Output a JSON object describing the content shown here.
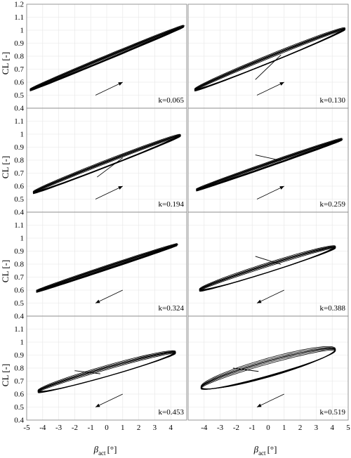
{
  "chart_data": {
    "type": "line",
    "layout": "4x2 grid of subplots",
    "grid": true,
    "xlabel": "β",
    "xlabel_sub": "act",
    "xlabel_unit": "[°]",
    "ylabel": "CL [-]",
    "ylim": [
      0.4,
      1.2
    ],
    "yticks": [
      "0.4",
      "0.5",
      "0.6",
      "0.7",
      "0.8",
      "0.9",
      "1",
      "1.1",
      "1.2"
    ],
    "left_xticks": [
      "-5",
      "-4",
      "-3",
      "-2",
      "-1",
      "0",
      "1",
      "2",
      "3",
      "4"
    ],
    "right_xticks": [
      "-4",
      "-3",
      "-2",
      "-1",
      "0",
      "1",
      "2",
      "3",
      "4",
      "5"
    ],
    "left_xlim": [
      -5,
      5
    ],
    "right_xlim": [
      -5,
      5
    ],
    "line_color": "#000000",
    "grid_color": "#e6e6e6",
    "panels": [
      {
        "k": "k=0.065",
        "arrow": "increasing",
        "x_range": [
          -4.8,
          4.8
        ],
        "cl_at_xmin": 0.54,
        "cl_at_xmax": 1.03,
        "loop_half_width": 0.012,
        "transient_start": null
      },
      {
        "k": "k=0.130",
        "arrow": "increasing",
        "x_range": [
          -4.6,
          4.8
        ],
        "cl_at_xmin": 0.54,
        "cl_at_xmax": 1.01,
        "loop_half_width": 0.025,
        "transient_start": [
          -0.8,
          0.62
        ]
      },
      {
        "k": "k=0.194",
        "arrow": "increasing",
        "x_range": [
          -4.6,
          4.6
        ],
        "cl_at_xmin": 0.55,
        "cl_at_xmax": 0.99,
        "loop_half_width": 0.02,
        "transient_start": [
          -0.6,
          0.67
        ]
      },
      {
        "k": "k=0.259",
        "arrow": "increasing",
        "x_range": [
          -4.5,
          4.6
        ],
        "cl_at_xmin": 0.57,
        "cl_at_xmax": 0.96,
        "loop_half_width": 0.012,
        "transient_start": [
          -0.8,
          0.84
        ]
      },
      {
        "k": "k=0.324",
        "arrow": "decreasing",
        "x_range": [
          -4.4,
          4.4
        ],
        "cl_at_xmin": 0.59,
        "cl_at_xmax": 0.95,
        "loop_half_width": 0.01,
        "transient_start": null
      },
      {
        "k": "k=0.388",
        "arrow": "decreasing",
        "x_range": [
          -4.3,
          4.2
        ],
        "cl_at_xmin": 0.6,
        "cl_at_xmax": 0.93,
        "loop_half_width": 0.03,
        "transient_start": [
          -0.8,
          0.86
        ]
      },
      {
        "k": "k=0.453",
        "arrow": "decreasing",
        "x_range": [
          -4.3,
          4.3
        ],
        "cl_at_xmin": 0.62,
        "cl_at_xmax": 0.92,
        "loop_half_width": 0.035,
        "transient_start": [
          -2.0,
          0.78
        ]
      },
      {
        "k": "k=0.519",
        "arrow": "decreasing",
        "x_range": [
          -4.2,
          4.2
        ],
        "cl_at_xmin": 0.65,
        "cl_at_xmax": 0.94,
        "loop_half_width": 0.06,
        "transient_start": [
          -2.2,
          0.8
        ]
      }
    ]
  }
}
